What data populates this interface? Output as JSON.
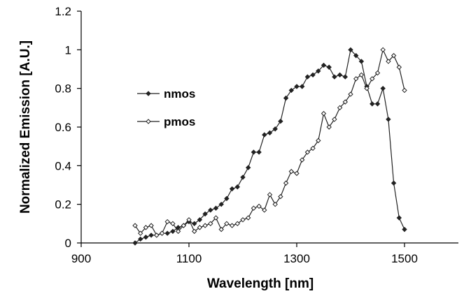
{
  "chart_data": {
    "type": "line",
    "xlabel": "Wavelength [nm]",
    "ylabel": "Normalized Emission [A.U.]",
    "xlim": [
      900,
      1600
    ],
    "ylim": [
      0,
      1.2
    ],
    "x_ticks": [
      900,
      1100,
      1300,
      1500
    ],
    "x_tick_labels": [
      "900",
      "1100",
      "1300",
      "1500"
    ],
    "y_ticks": [
      0,
      0.2,
      0.4,
      0.6,
      0.8,
      1,
      1.2
    ],
    "y_tick_labels": [
      "0",
      "0.2",
      "0.4",
      "0.6",
      "0.8",
      "1",
      "1.2"
    ],
    "grid": false,
    "legend_position": "left-middle",
    "series": [
      {
        "name": "nmos",
        "marker": "filled-diamond",
        "color": "#222222",
        "x": [
          1000,
          1010,
          1020,
          1030,
          1040,
          1050,
          1060,
          1070,
          1080,
          1090,
          1100,
          1110,
          1120,
          1130,
          1140,
          1150,
          1160,
          1170,
          1180,
          1190,
          1200,
          1210,
          1220,
          1230,
          1240,
          1250,
          1260,
          1270,
          1280,
          1290,
          1300,
          1310,
          1320,
          1330,
          1340,
          1350,
          1360,
          1370,
          1380,
          1390,
          1400,
          1410,
          1420,
          1430,
          1440,
          1450,
          1460,
          1470,
          1480,
          1490,
          1500
        ],
        "y": [
          0.0,
          0.02,
          0.03,
          0.04,
          0.04,
          0.05,
          0.05,
          0.06,
          0.08,
          0.09,
          0.11,
          0.1,
          0.12,
          0.15,
          0.17,
          0.18,
          0.2,
          0.23,
          0.28,
          0.29,
          0.34,
          0.39,
          0.47,
          0.47,
          0.56,
          0.57,
          0.59,
          0.63,
          0.75,
          0.79,
          0.81,
          0.81,
          0.86,
          0.87,
          0.89,
          0.92,
          0.91,
          0.86,
          0.87,
          0.86,
          1.0,
          0.97,
          0.94,
          0.81,
          0.72,
          0.72,
          0.8,
          0.64,
          0.31,
          0.13,
          0.07
        ]
      },
      {
        "name": "pmos",
        "marker": "open-diamond",
        "color": "#222222",
        "x": [
          1000,
          1010,
          1020,
          1030,
          1040,
          1050,
          1060,
          1070,
          1080,
          1090,
          1100,
          1110,
          1120,
          1130,
          1140,
          1150,
          1160,
          1170,
          1180,
          1190,
          1200,
          1210,
          1220,
          1230,
          1240,
          1250,
          1260,
          1270,
          1280,
          1290,
          1300,
          1310,
          1320,
          1330,
          1340,
          1350,
          1360,
          1370,
          1380,
          1390,
          1400,
          1410,
          1420,
          1430,
          1440,
          1450,
          1460,
          1470,
          1480,
          1490,
          1500
        ],
        "y": [
          0.09,
          0.05,
          0.08,
          0.09,
          0.04,
          0.05,
          0.11,
          0.1,
          0.06,
          0.09,
          0.12,
          0.06,
          0.08,
          0.09,
          0.1,
          0.13,
          0.07,
          0.1,
          0.09,
          0.1,
          0.12,
          0.13,
          0.18,
          0.19,
          0.17,
          0.25,
          0.2,
          0.24,
          0.31,
          0.37,
          0.36,
          0.43,
          0.47,
          0.49,
          0.53,
          0.67,
          0.6,
          0.64,
          0.7,
          0.73,
          0.77,
          0.85,
          0.87,
          0.8,
          0.85,
          0.88,
          1.0,
          0.94,
          0.97,
          0.91,
          0.79
        ]
      }
    ]
  }
}
